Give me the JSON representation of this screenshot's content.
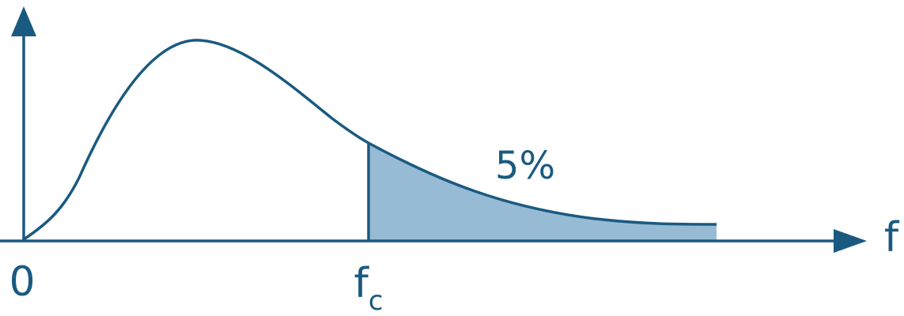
{
  "colors": {
    "line": "#1a5a80",
    "fill": "#97bbd4",
    "background": "#ffffff"
  },
  "labels": {
    "origin": "0",
    "x_axis": "f",
    "critical_main": "f",
    "critical_sub": "c",
    "tail_area": "5%"
  }
}
